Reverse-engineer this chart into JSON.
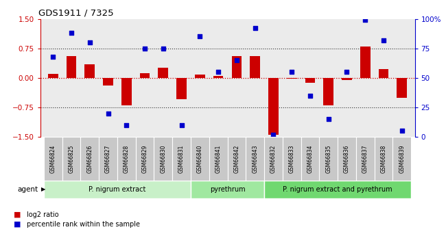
{
  "title": "GDS1911 / 7325",
  "samples": [
    "GSM66824",
    "GSM66825",
    "GSM66826",
    "GSM66827",
    "GSM66828",
    "GSM66829",
    "GSM66830",
    "GSM66831",
    "GSM66840",
    "GSM66841",
    "GSM66842",
    "GSM66843",
    "GSM66832",
    "GSM66833",
    "GSM66834",
    "GSM66835",
    "GSM66836",
    "GSM66837",
    "GSM66838",
    "GSM66839"
  ],
  "log2_ratio": [
    0.1,
    0.55,
    0.35,
    -0.2,
    -0.7,
    0.12,
    0.25,
    -0.55,
    0.08,
    0.05,
    0.55,
    0.55,
    -1.45,
    -0.02,
    -0.12,
    -0.7,
    -0.05,
    0.8,
    0.22,
    -0.5
  ],
  "percentile": [
    68,
    88,
    80,
    20,
    10,
    75,
    75,
    10,
    85,
    55,
    65,
    92,
    2,
    55,
    35,
    15,
    55,
    99,
    82,
    5
  ],
  "groups": [
    {
      "label": "P. nigrum extract",
      "start": 0,
      "end": 7,
      "color": "#c8f0c8"
    },
    {
      "label": "pyrethrum",
      "start": 8,
      "end": 11,
      "color": "#a0e8a0"
    },
    {
      "label": "P. nigrum extract and pyrethrum",
      "start": 12,
      "end": 19,
      "color": "#70d870"
    }
  ],
  "bar_color": "#cc0000",
  "dot_color": "#0000cc",
  "zero_line_color": "#cc0000",
  "hline_color": "#333333",
  "ylim": [
    -1.5,
    1.5
  ],
  "y2lim": [
    0,
    100
  ],
  "yticks": [
    -1.5,
    -0.75,
    0,
    0.75,
    1.5
  ],
  "y2ticks": [
    0,
    25,
    50,
    75,
    100
  ],
  "agent_label": "agent",
  "legend_items": [
    "log2 ratio",
    "percentile rank within the sample"
  ],
  "plot_bg": "#ebebeb",
  "sample_box_color": "#c8c8c8"
}
